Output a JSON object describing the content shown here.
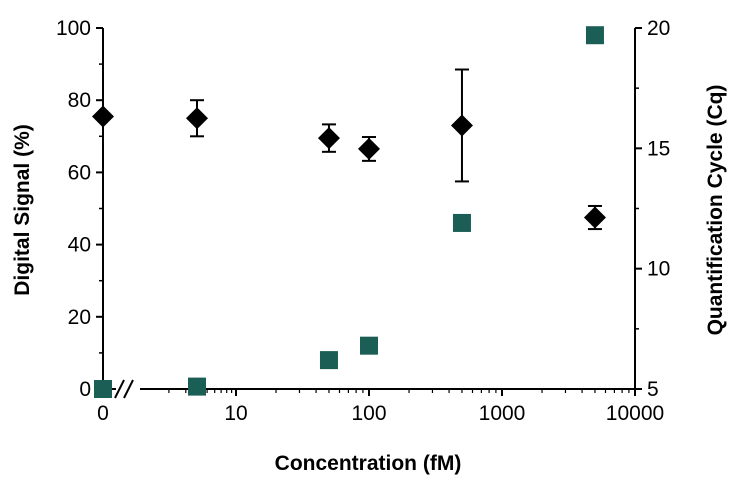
{
  "chart_data": {
    "type": "scatter",
    "title": "",
    "xlabel": "Concentration (fM)",
    "ylabel": "Digital Signal (%)",
    "y2label": "Quantification Cycle (Cq)",
    "x_scale": "log",
    "x_ticks": [
      "0",
      "10",
      "100",
      "1000",
      "10000"
    ],
    "x_axis_break": "//",
    "ylim": [
      0,
      100
    ],
    "y_ticks": [
      "0",
      "20",
      "40",
      "60",
      "80",
      "100"
    ],
    "y2lim": [
      5,
      20
    ],
    "y2_ticks": [
      "5",
      "10",
      "15",
      "20"
    ],
    "grid": false,
    "legend": "none",
    "series": [
      {
        "axis": "left",
        "marker": "diamond",
        "color": "#000000",
        "points": [
          {
            "x": 0,
            "y": 75.5,
            "err": 0
          },
          {
            "x": 5,
            "y": 75,
            "err": 5
          },
          {
            "x": 50,
            "y": 69.5,
            "err": 3.8
          },
          {
            "x": 100,
            "y": 66.5,
            "err": 3.3
          },
          {
            "x": 500,
            "y": 73,
            "err": 15.5
          },
          {
            "x": 5000,
            "y": 47.5,
            "err": 3.2
          }
        ]
      },
      {
        "axis": "right",
        "marker": "square",
        "color": "#1a5e55",
        "points": [
          {
            "x": 0,
            "y": 5.0
          },
          {
            "x": 5,
            "y": 5.1
          },
          {
            "x": 50,
            "y": 6.2
          },
          {
            "x": 100,
            "y": 6.8
          },
          {
            "x": 500,
            "y": 11.9
          },
          {
            "x": 5000,
            "y": 19.7
          }
        ]
      }
    ]
  }
}
